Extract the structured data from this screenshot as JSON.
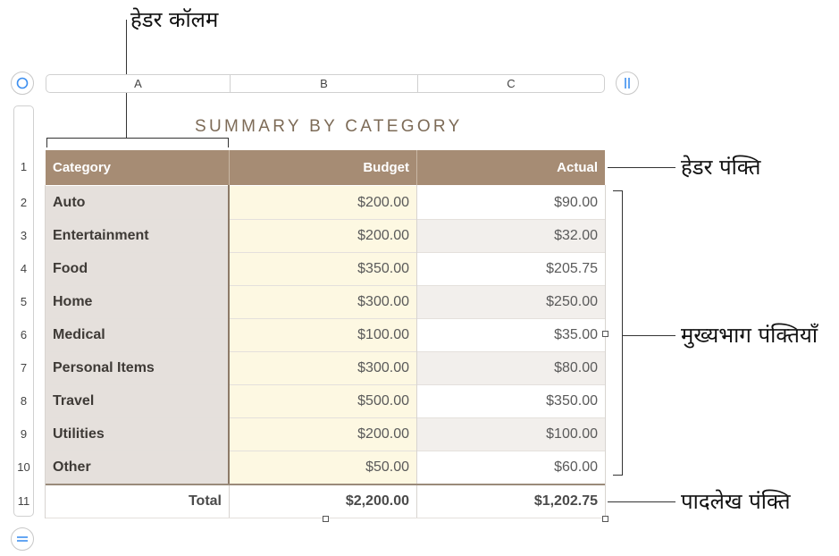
{
  "annotations": {
    "header_column": "हेडर कॉलम",
    "header_row": "हेडर पंक्ति",
    "body_rows": "मुख्यभाग पंक्तियाँ",
    "footer_row": "पादलेख पंक्ति"
  },
  "columns": [
    "A",
    "B",
    "C"
  ],
  "row_numbers": [
    "1",
    "2",
    "3",
    "4",
    "5",
    "6",
    "7",
    "8",
    "9",
    "10",
    "11"
  ],
  "table": {
    "title": "SUMMARY BY CATEGORY",
    "headers": [
      "Category",
      "Budget",
      "Actual"
    ],
    "rows": [
      {
        "category": "Auto",
        "budget": "$200.00",
        "actual": "$90.00"
      },
      {
        "category": "Entertainment",
        "budget": "$200.00",
        "actual": "$32.00"
      },
      {
        "category": "Food",
        "budget": "$350.00",
        "actual": "$205.75"
      },
      {
        "category": "Home",
        "budget": "$300.00",
        "actual": "$250.00"
      },
      {
        "category": "Medical",
        "budget": "$100.00",
        "actual": "$35.00"
      },
      {
        "category": "Personal Items",
        "budget": "$300.00",
        "actual": "$80.00"
      },
      {
        "category": "Travel",
        "budget": "$500.00",
        "actual": "$350.00"
      },
      {
        "category": "Utilities",
        "budget": "$200.00",
        "actual": "$100.00"
      },
      {
        "category": "Other",
        "budget": "$50.00",
        "actual": "$60.00"
      }
    ],
    "footer": {
      "label": "Total",
      "budget": "$2,200.00",
      "actual": "$1,202.75"
    }
  },
  "colors": {
    "header_bg": "#a68c74",
    "category_bg": "#e5e0dc",
    "budget_bg": "#fdf8e2",
    "alt_row_bg": "#f2efec",
    "title_color": "#7d6b57",
    "control_blue": "#3d8ff0"
  },
  "icons": {
    "select_table": "circle-select-icon",
    "add_column": "column-handle-icon",
    "add_row": "row-handle-icon"
  }
}
